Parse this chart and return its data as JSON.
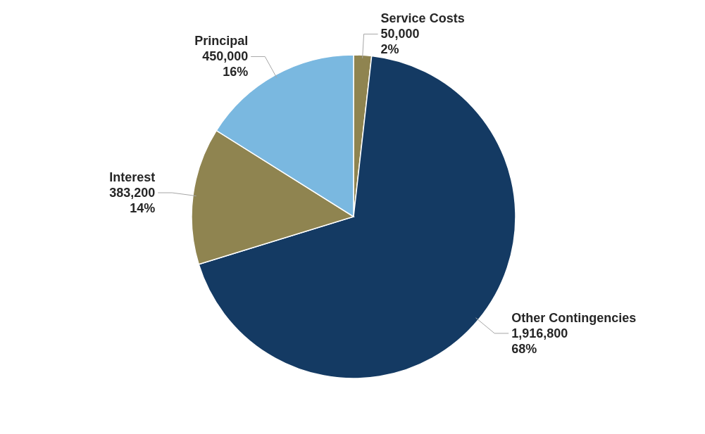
{
  "chart_data": {
    "type": "pie",
    "categories": [
      "Service Costs",
      "Other Contingencies",
      "Interest",
      "Principal"
    ],
    "values": [
      50000,
      1916800,
      383200,
      450000
    ],
    "colors": [
      "#8f8450",
      "#143a63",
      "#8f8450",
      "#7ab8e0"
    ],
    "value_labels": [
      "50,000\n2%",
      "1,916,800\n68%",
      "383,200\n14%",
      "450,000\n16%"
    ]
  }
}
